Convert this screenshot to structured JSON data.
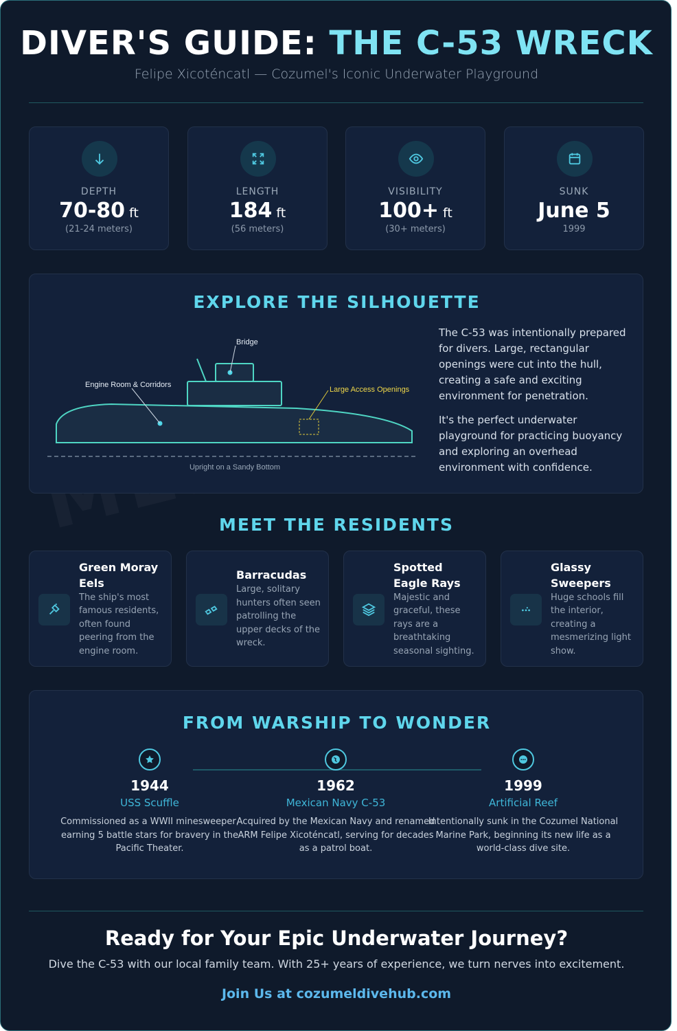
{
  "header": {
    "title_part1": "DIVER'S GUIDE:",
    "title_part2": "THE C-53 WRECK",
    "subtitle": "Felipe Xicoténcatl — Cozumel's Iconic Underwater Playground"
  },
  "stats": [
    {
      "label": "DEPTH",
      "value": "70-80",
      "unit": "ft",
      "note": "(21-24 meters)"
    },
    {
      "label": "LENGTH",
      "value": "184",
      "unit": "ft",
      "note": "(56 meters)"
    },
    {
      "label": "VISIBILITY",
      "value": "100+",
      "unit": "ft",
      "note": "(30+ meters)"
    },
    {
      "label": "SUNK",
      "value": "June 5",
      "note": "1999"
    }
  ],
  "silhouette": {
    "title": "EXPLORE THE SILHOUETTE",
    "labels": {
      "bridge": "Bridge",
      "engine": "Engine Room & Corridors",
      "openings": "Large Access Openings",
      "bottom": "Upright on a Sandy Bottom"
    },
    "paragraphs": [
      "The C-53 was intentionally prepared for divers. Large, rectangular openings were cut into the hull, creating a safe and exciting environment for penetration.",
      "It's the perfect underwater playground for practicing buoyancy and exploring an overhead environment with confidence."
    ]
  },
  "watermark": "MELDIVEHUB",
  "residents": {
    "title": "MEET THE RESIDENTS",
    "items": [
      {
        "name": "Green Moray Eels",
        "description": "The ship's most famous residents, often found peering from the engine room."
      },
      {
        "name": "Barracudas",
        "description": "Large, solitary hunters often seen patrolling the upper decks of the wreck."
      },
      {
        "name": "Spotted Eagle Rays",
        "description": "Majestic and graceful, these rays are a breathtaking seasonal sighting."
      },
      {
        "name": "Glassy Sweepers",
        "description": "Huge schools fill the interior, creating a mesmerizing light show."
      }
    ]
  },
  "history": {
    "title": "FROM WARSHIP TO WONDER",
    "events": [
      {
        "year": "1944",
        "name": "USS Scuffle",
        "description": "Commissioned as a WWII minesweeper, earning 5 battle stars for bravery in the Pacific Theater."
      },
      {
        "year": "1962",
        "name": "Mexican Navy C-53",
        "description": "Acquired by the Mexican Navy and renamed ARM Felipe Xicoténcatl, serving for decades as a patrol boat."
      },
      {
        "year": "1999",
        "name": "Artificial Reef",
        "description": "Intentionally sunk in the Cozumel National Marine Park, beginning its new life as a world-class dive site."
      }
    ]
  },
  "cta": {
    "title": "Ready for Your Epic Underwater Journey?",
    "text": "Dive the C-53 with our local family team. With 25+ years of experience, we turn nerves into excitement.",
    "link": "Join Us at cozumeldivehub.com"
  }
}
